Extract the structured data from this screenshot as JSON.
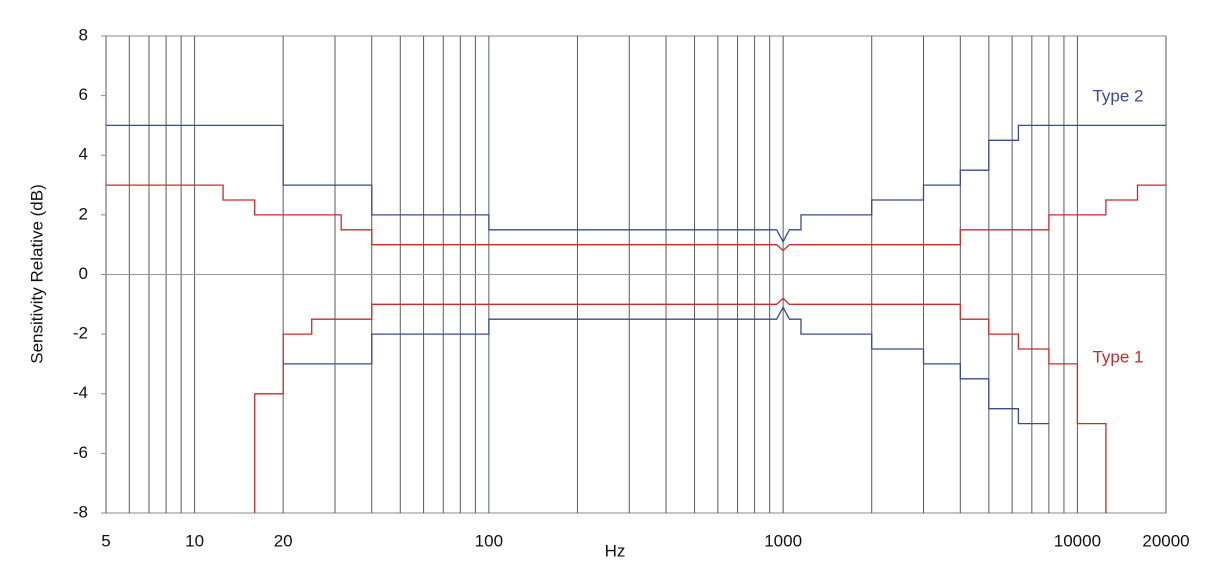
{
  "chart_data": {
    "type": "step-line",
    "x_label": "Hz",
    "y_label": "Sensitivity Relative (dB)",
    "xlog": true,
    "xlim": [
      5,
      20000
    ],
    "ylim": [
      -8,
      8
    ],
    "xticks": [
      5,
      10,
      20,
      100,
      1000,
      10000,
      20000
    ],
    "xgrid": [
      5,
      6,
      7,
      8,
      9,
      10,
      20,
      30,
      40,
      50,
      60,
      70,
      80,
      90,
      100,
      200,
      300,
      400,
      500,
      600,
      700,
      800,
      900,
      1000,
      2000,
      3000,
      4000,
      5000,
      6000,
      7000,
      8000,
      9000,
      10000,
      20000
    ],
    "yticks": [
      -8,
      -6,
      -4,
      -2,
      0,
      2,
      4,
      6,
      8
    ],
    "series": [
      {
        "name": "Type 2",
        "color": "#3b4a8e",
        "upper": {
          "x": [
            5,
            20,
            20,
            40,
            40,
            100,
            100,
            950,
            1000,
            1050,
            1150,
            1150,
            2000,
            2000,
            3000,
            3000,
            4000,
            4000,
            5000,
            5000,
            6300,
            6300,
            20000
          ],
          "y": [
            5,
            5,
            3,
            3,
            2,
            2,
            1.5,
            1.5,
            1.1,
            1.5,
            1.5,
            2,
            2,
            2.5,
            2.5,
            3,
            3,
            3.5,
            3.5,
            4.5,
            4.5,
            5,
            5
          ]
        },
        "lower": {
          "x": [
            20,
            40,
            40,
            100,
            100,
            950,
            1000,
            1050,
            1150,
            1150,
            2000,
            2000,
            3000,
            3000,
            4000,
            4000,
            5000,
            5000,
            6300,
            6300,
            8000
          ],
          "y": [
            -3,
            -3,
            -2,
            -2,
            -1.5,
            -1.5,
            -1.1,
            -1.5,
            -1.5,
            -2,
            -2,
            -2.5,
            -2.5,
            -3,
            -3,
            -3.5,
            -3.5,
            -4.5,
            -4.5,
            -5,
            -5
          ]
        }
      },
      {
        "name": "Type 1",
        "color": "#cc2a2a",
        "upper": {
          "x": [
            5,
            12.5,
            12.5,
            16,
            16,
            31.5,
            31.5,
            40,
            40,
            950,
            1000,
            1050,
            4000,
            4000,
            8000,
            8000,
            12500,
            12500,
            16000,
            16000,
            20000
          ],
          "y": [
            3,
            3,
            2.5,
            2.5,
            2,
            2,
            1.5,
            1.5,
            1,
            1,
            0.8,
            1,
            1,
            1.5,
            1.5,
            2,
            2,
            2.5,
            2.5,
            3,
            3
          ]
        },
        "lower": {
          "x": [
            16,
            16,
            20,
            20,
            25,
            25,
            40,
            40,
            950,
            1000,
            1050,
            4000,
            4000,
            5000,
            5000,
            6300,
            6300,
            8000,
            8000,
            10000,
            10000,
            12500,
            12500
          ],
          "y": [
            -8,
            -4,
            -4,
            -2,
            -2,
            -1.5,
            -1.5,
            -1,
            -1,
            -0.8,
            -1,
            -1,
            -1.5,
            -1.5,
            -2,
            -2,
            -2.5,
            -2.5,
            -3,
            -3,
            -5,
            -5,
            -8
          ]
        }
      }
    ]
  }
}
